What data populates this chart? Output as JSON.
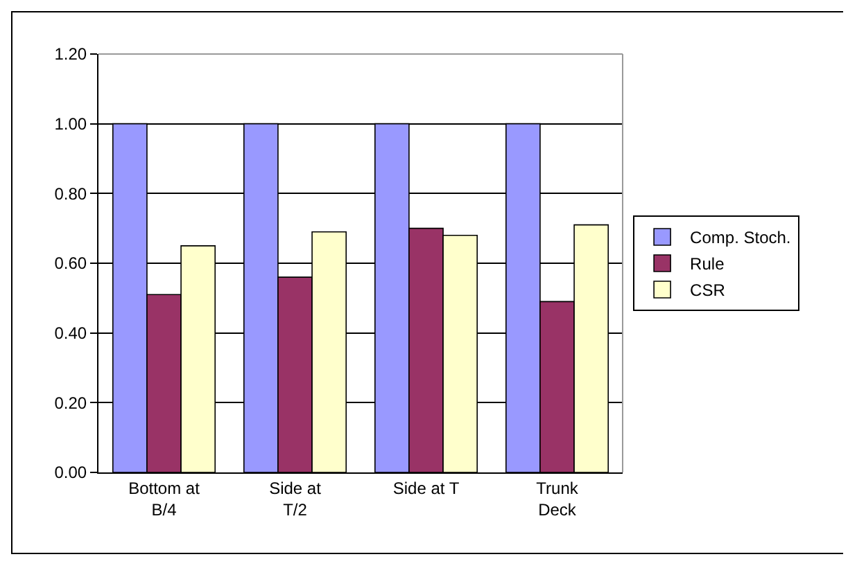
{
  "chart_data": {
    "type": "bar",
    "categories": [
      "Bottom at B/4",
      "Side at T/2",
      "Side at T",
      "Trunk Deck"
    ],
    "series": [
      {
        "name": "Comp. Stoch.",
        "color": "#9999ff",
        "values": [
          1.0,
          1.0,
          1.0,
          1.0
        ]
      },
      {
        "name": "Rule",
        "color": "#993366",
        "values": [
          0.51,
          0.56,
          0.7,
          0.49
        ]
      },
      {
        "name": "CSR",
        "color": "#ffffcc",
        "values": [
          0.65,
          0.69,
          0.68,
          0.71
        ]
      }
    ],
    "ylim": [
      0,
      1.2
    ],
    "yticks": [
      {
        "value": 0,
        "label": "0.00"
      },
      {
        "value": 0.2,
        "label": "0.20"
      },
      {
        "value": 0.4,
        "label": "0.40"
      },
      {
        "value": 0.6,
        "label": "0.60"
      },
      {
        "value": 0.8,
        "label": "0.80"
      },
      {
        "value": 1.0,
        "label": "1.00"
      },
      {
        "value": 1.2,
        "label": "1.20"
      }
    ],
    "grid": "y",
    "legend": "right"
  }
}
